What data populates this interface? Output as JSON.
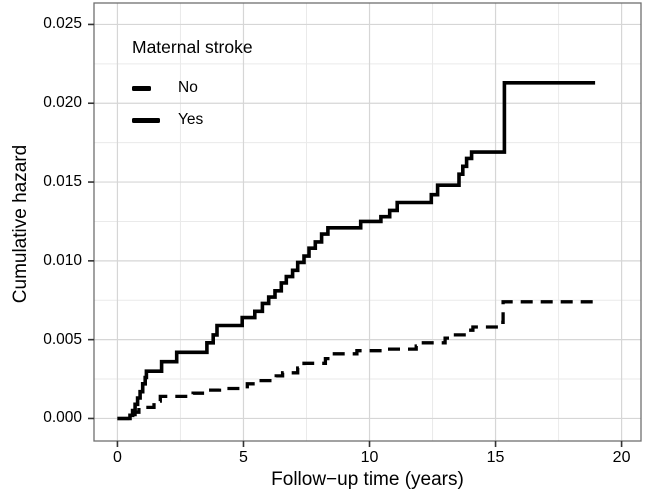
{
  "chart_data": {
    "type": "line",
    "subtype": "cumulative-hazard-step-curves",
    "title": "",
    "xlabel": "Follow−up time (years)",
    "ylabel": "Cumulative hazard",
    "xlim": [
      -0.93,
      20.77
    ],
    "ylim": [
      -0.00143,
      0.02636
    ],
    "grid": {
      "major": true,
      "minor": true,
      "major_color": "#d6d6d6",
      "minor_color": "#eaeaea"
    },
    "panel_border_color": "#6f6f6f",
    "background_color": "#ffffff",
    "line_color": "#000000",
    "x_ticks": [
      {
        "value": 0,
        "label": "0"
      },
      {
        "value": 5,
        "label": "5"
      },
      {
        "value": 10,
        "label": "10"
      },
      {
        "value": 15,
        "label": "15"
      },
      {
        "value": 20,
        "label": "20"
      }
    ],
    "x_minor_ticks": [
      2.5,
      7.5,
      12.5,
      17.5
    ],
    "y_ticks": [
      {
        "value": 0.0,
        "label": "0.000"
      },
      {
        "value": 0.005,
        "label": "0.005"
      },
      {
        "value": 0.01,
        "label": "0.010"
      },
      {
        "value": 0.015,
        "label": "0.015"
      },
      {
        "value": 0.02,
        "label": "0.020"
      },
      {
        "value": 0.025,
        "label": "0.025"
      }
    ],
    "y_minor_ticks": [
      0.0025,
      0.0075,
      0.0125,
      0.0175,
      0.0225
    ],
    "legend": {
      "title": "Maternal stroke",
      "position": "top-left",
      "entries": [
        {
          "label": "No",
          "style": "dashed"
        },
        {
          "label": "Yes",
          "style": "solid"
        }
      ]
    },
    "series": [
      {
        "name": "No",
        "style": "dashed",
        "color": "#000000",
        "steps": [
          [
            0,
            0.0
          ],
          [
            0.7,
            0.0004
          ],
          [
            0.85,
            0.0007
          ],
          [
            1.45,
            0.0011
          ],
          [
            1.7,
            0.0014
          ],
          [
            3.0,
            0.0016
          ],
          [
            3.7,
            0.0018
          ],
          [
            4.05,
            0.0019
          ],
          [
            5.15,
            0.0022
          ],
          [
            5.45,
            0.0024
          ],
          [
            6.3,
            0.0027
          ],
          [
            6.55,
            0.0029
          ],
          [
            7.15,
            0.0032
          ],
          [
            7.4,
            0.0035
          ],
          [
            8.25,
            0.0038
          ],
          [
            8.45,
            0.0041
          ],
          [
            9.5,
            0.0043
          ],
          [
            10.6,
            0.0044
          ],
          [
            11.85,
            0.0046
          ],
          [
            12.05,
            0.0048
          ],
          [
            13.0,
            0.0051
          ],
          [
            13.2,
            0.0053
          ],
          [
            13.9,
            0.0056
          ],
          [
            14.1,
            0.0058
          ],
          [
            15.1,
            0.0061
          ],
          [
            15.3,
            0.0074
          ],
          [
            18.9,
            0.0074
          ]
        ]
      },
      {
        "name": "Yes",
        "style": "solid",
        "color": "#000000",
        "steps": [
          [
            0,
            0.0
          ],
          [
            0.5,
            0.0002
          ],
          [
            0.6,
            0.0005
          ],
          [
            0.7,
            0.0009
          ],
          [
            0.8,
            0.0013
          ],
          [
            0.9,
            0.0017
          ],
          [
            1.0,
            0.0022
          ],
          [
            1.1,
            0.0026
          ],
          [
            1.15,
            0.003
          ],
          [
            1.75,
            0.0036
          ],
          [
            2.35,
            0.0042
          ],
          [
            3.55,
            0.0048
          ],
          [
            3.8,
            0.0053
          ],
          [
            3.95,
            0.0059
          ],
          [
            4.95,
            0.0064
          ],
          [
            5.45,
            0.0068
          ],
          [
            5.75,
            0.0073
          ],
          [
            6.0,
            0.0077
          ],
          [
            6.25,
            0.0081
          ],
          [
            6.5,
            0.0086
          ],
          [
            6.7,
            0.009
          ],
          [
            6.95,
            0.0094
          ],
          [
            7.15,
            0.0099
          ],
          [
            7.4,
            0.0103
          ],
          [
            7.6,
            0.0108
          ],
          [
            7.85,
            0.0112
          ],
          [
            8.1,
            0.0117
          ],
          [
            8.35,
            0.0121
          ],
          [
            9.65,
            0.0125
          ],
          [
            10.45,
            0.0128
          ],
          [
            10.8,
            0.0132
          ],
          [
            11.1,
            0.0137
          ],
          [
            12.45,
            0.0142
          ],
          [
            12.7,
            0.0148
          ],
          [
            13.55,
            0.0155
          ],
          [
            13.7,
            0.016
          ],
          [
            13.85,
            0.0165
          ],
          [
            14.05,
            0.0169
          ],
          [
            15.35,
            0.0213
          ],
          [
            18.95,
            0.0213
          ]
        ]
      }
    ]
  }
}
